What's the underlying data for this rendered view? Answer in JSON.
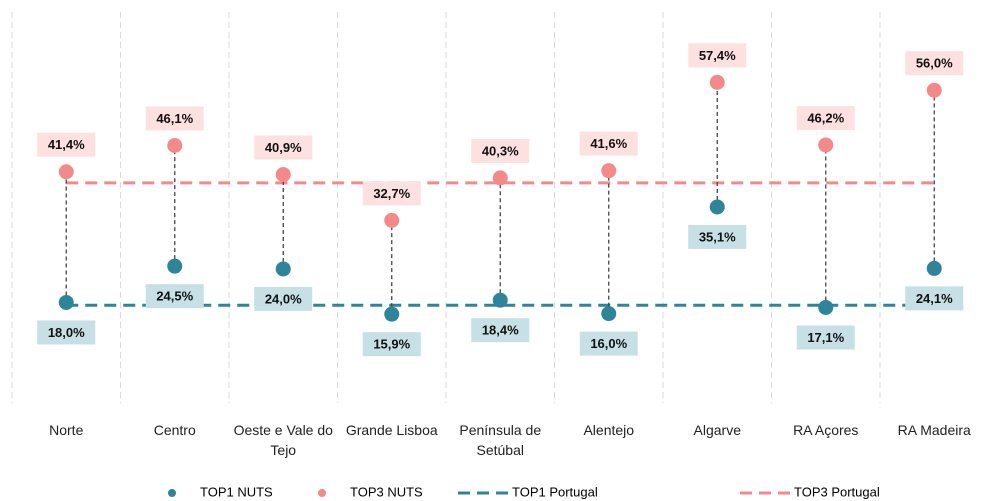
{
  "chart_data": {
    "type": "dot",
    "categories": [
      "Norte",
      "Centro",
      "Oeste e Vale do Tejo",
      "Grande Lisboa",
      "Península de Setúbal",
      "Alentejo",
      "Algarve",
      "RA Açores",
      "RA Madeira"
    ],
    "series": [
      {
        "name": "TOP1 NUTS",
        "color": "#2e8599",
        "label_background": "#c6e0e6",
        "values": [
          18.0,
          24.5,
          24.0,
          15.9,
          18.4,
          16.0,
          35.1,
          17.1,
          24.1
        ],
        "value_labels": [
          "18,0%",
          "24,5%",
          "24,0%",
          "15,9%",
          "18,4%",
          "16,0%",
          "35,1%",
          "17,1%",
          "24,1%"
        ]
      },
      {
        "name": "TOP3 NUTS",
        "color": "#f4898a",
        "label_background": "#fde0e0",
        "values": [
          41.4,
          46.1,
          40.9,
          32.7,
          40.3,
          41.6,
          57.4,
          46.2,
          56.0
        ],
        "value_labels": [
          "41,4%",
          "46,1%",
          "40,9%",
          "32,7%",
          "40,3%",
          "41,6%",
          "57,4%",
          "46,2%",
          "56,0%"
        ]
      }
    ],
    "reference_lines": [
      {
        "name": "TOP1 Portugal",
        "color": "#2e8599",
        "value": 17.5
      },
      {
        "name": "TOP3 Portugal",
        "color": "#f4898a",
        "value": 39.4
      }
    ],
    "ylim": [
      0,
      70
    ],
    "grid": true,
    "legend": "bottom"
  }
}
